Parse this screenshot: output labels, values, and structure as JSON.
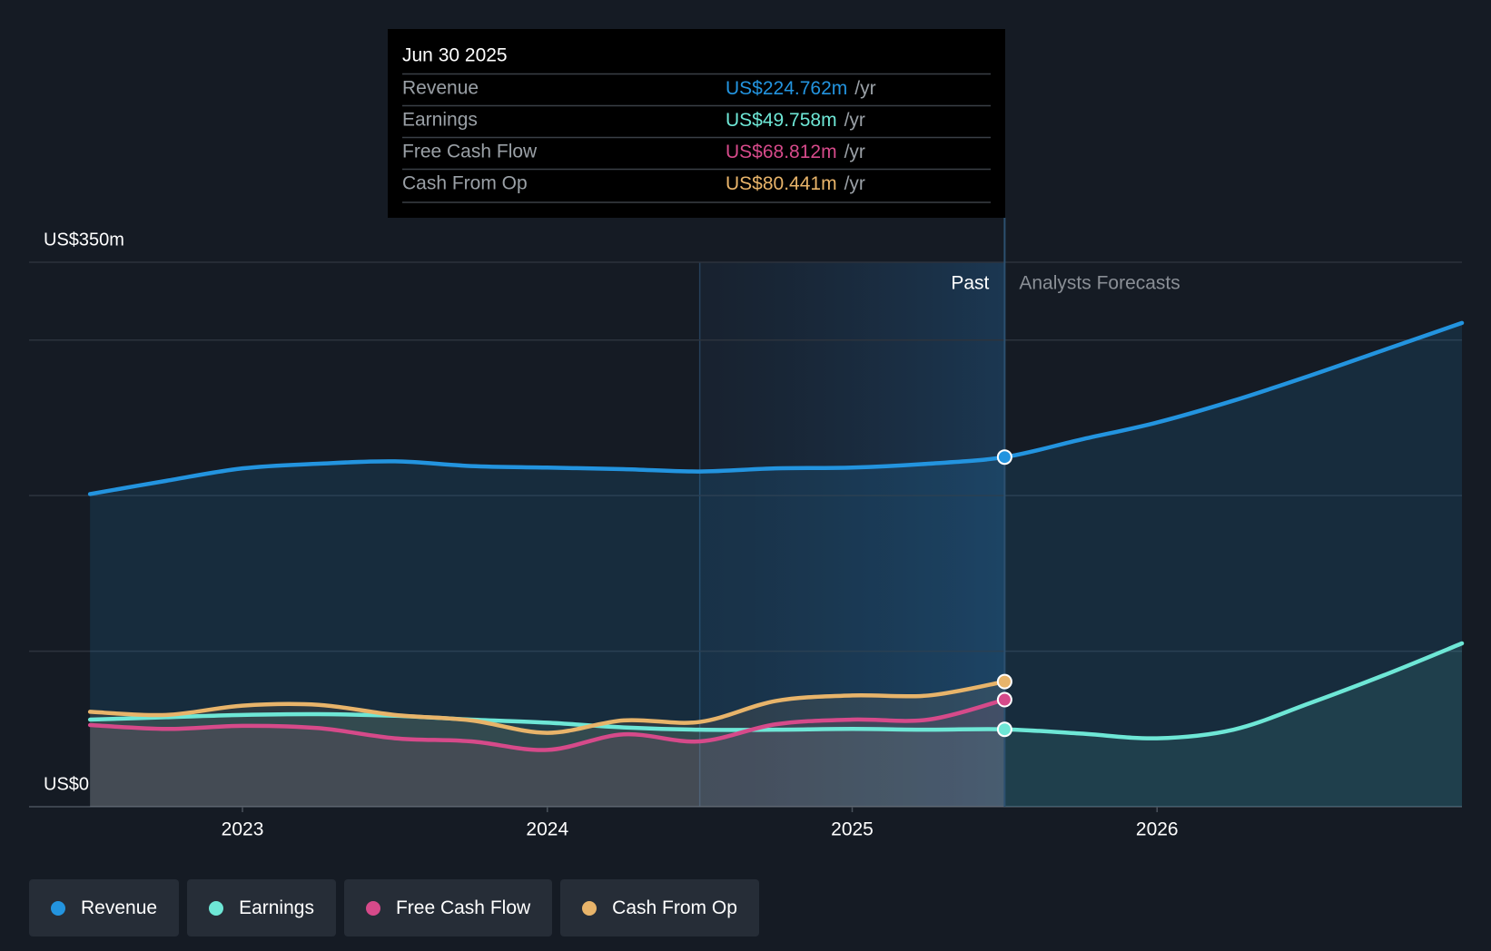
{
  "chart_data": {
    "type": "line",
    "x": [
      2022.5,
      2022.75,
      2023,
      2023.25,
      2023.5,
      2023.75,
      2024,
      2024.25,
      2024.5,
      2024.75,
      2025,
      2025.25,
      2025.5,
      2025.75,
      2026,
      2026.25,
      2026.5,
      2026.75,
      2027
    ],
    "xlim": [
      2022.3,
      2027
    ],
    "xticks": [
      2023,
      2024,
      2025,
      2026
    ],
    "ylim": [
      0,
      350
    ],
    "yticks": [
      {
        "value": 0,
        "label": "US$0"
      },
      {
        "value": 350,
        "label": "US$350m"
      }
    ],
    "ygrid": [
      0,
      100,
      200,
      300,
      350
    ],
    "past_range": [
      2024.5,
      2025.5
    ],
    "past_label": "Past",
    "forecast_label": "Analysts Forecasts",
    "series": [
      {
        "name": "Revenue",
        "color": "#2394df",
        "values": [
          201,
          209.5,
          217.5,
          220.5,
          222,
          219,
          218,
          217,
          215.5,
          217.5,
          218,
          220.5,
          224.762,
          236,
          247,
          261,
          277,
          294,
          311
        ]
      },
      {
        "name": "Earnings",
        "color": "#6ee7d6",
        "values": [
          56,
          57.5,
          59,
          59.5,
          58.5,
          56,
          54,
          51,
          49.5,
          49.5,
          50,
          49.5,
          49.758,
          47,
          44,
          49.5,
          66.5,
          85,
          105
        ]
      },
      {
        "name": "Free Cash Flow",
        "color": "#d64a8a",
        "values": [
          52.5,
          50,
          52,
          50.5,
          44,
          42,
          36.5,
          46.5,
          42,
          53,
          56,
          56,
          68.812,
          null,
          null,
          null,
          null,
          null,
          null
        ]
      },
      {
        "name": "Cash From Op",
        "color": "#e8b46a",
        "values": [
          61,
          59,
          65,
          65.5,
          59,
          55.5,
          47.5,
          55.5,
          54.5,
          68,
          71.5,
          71.5,
          80.441,
          null,
          null,
          null,
          null,
          null,
          null
        ]
      }
    ],
    "tooltip": {
      "title": "Jun 30 2025",
      "unit": "/yr",
      "rows": [
        {
          "label": "Revenue",
          "value": "US$224.762m"
        },
        {
          "label": "Earnings",
          "value": "US$49.758m"
        },
        {
          "label": "Free Cash Flow",
          "value": "US$68.812m"
        },
        {
          "label": "Cash From Op",
          "value": "US$80.441m"
        }
      ]
    }
  }
}
